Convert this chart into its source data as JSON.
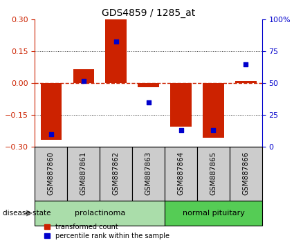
{
  "title": "GDS4859 / 1285_at",
  "samples": [
    "GSM887860",
    "GSM887861",
    "GSM887862",
    "GSM887863",
    "GSM887864",
    "GSM887865",
    "GSM887866"
  ],
  "transformed_count": [
    -0.265,
    0.065,
    0.3,
    -0.02,
    -0.205,
    -0.255,
    0.01
  ],
  "percentile_rank": [
    10,
    52,
    83,
    35,
    13,
    13,
    65
  ],
  "ylim_left": [
    -0.3,
    0.3
  ],
  "ylim_right": [
    0,
    100
  ],
  "yticks_left": [
    -0.3,
    -0.15,
    0,
    0.15,
    0.3
  ],
  "yticks_right": [
    0,
    25,
    50,
    75,
    100
  ],
  "bar_color": "#cc2200",
  "dot_color": "#0000cc",
  "hline_color": "#cc2200",
  "grid_color": "#333333",
  "legend_bar_label": "transformed count",
  "legend_dot_label": "percentile rank within the sample",
  "disease_state_label": "disease state",
  "bar_width": 0.65,
  "group_defs": [
    {
      "label": "prolactinoma",
      "start": 0,
      "end": 3,
      "color": "#aaddaa"
    },
    {
      "label": "normal pituitary",
      "start": 4,
      "end": 6,
      "color": "#55cc55"
    }
  ],
  "sample_box_color": "#cccccc",
  "title_fontsize": 10,
  "tick_fontsize": 8,
  "label_fontsize": 7.5,
  "group_fontsize": 8,
  "legend_fontsize": 7
}
